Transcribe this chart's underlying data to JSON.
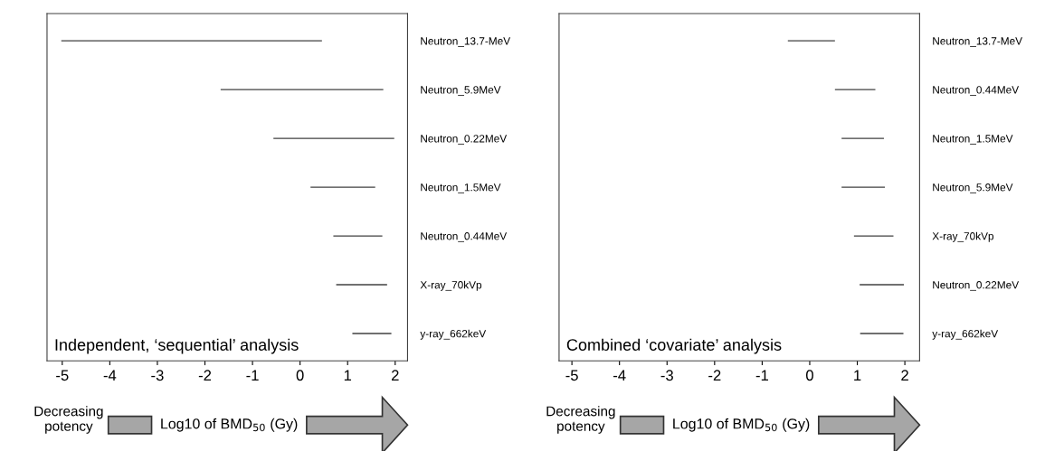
{
  "chart_data": [
    {
      "type": "bar",
      "orientation": "horizontal",
      "xlabel": "Log10 of BMD$_{50}$ (Gy)",
      "annotations": [
        "Independent, ‘sequential’ analysis",
        "Decreasing\npotency"
      ],
      "categories": [
        "Neutron_13.7-MeV",
        "Neutron_5.9MeV",
        "Neutron_0.22MeV",
        "Neutron_1.5MeV",
        "Neutron_0.44MeV",
        "X-ray_70kVp",
        "y-ray_662keV"
      ],
      "base": [
        -5.02,
        -1.67,
        -0.56,
        0.22,
        0.7,
        0.76,
        1.1
      ],
      "values": [
        5.48,
        3.42,
        2.54,
        1.36,
        1.03,
        1.07,
        0.82
      ],
      "color": "#404040",
      "xlim": [
        -5.32,
        2.26
      ],
      "xticks": [
        -5,
        -4,
        -3,
        -2,
        -1,
        0,
        1,
        2
      ]
    },
    {
      "type": "bar",
      "orientation": "horizontal",
      "xlabel": "Log10 of BMD$_{50}$ (Gy)",
      "annotations": [
        "Combined ‘covariate’ analysis",
        "Decreasing\npotency"
      ],
      "categories": [
        "Neutron_13.7-MeV",
        "Neutron_0.44MeV",
        "Neutron_1.5MeV",
        "Neutron_5.9MeV",
        "X-ray_70kVp",
        "Neutron_0.22MeV",
        "y-ray_662keV"
      ],
      "base": [
        -0.46,
        0.53,
        0.67,
        0.67,
        0.93,
        1.05,
        1.06
      ],
      "values": [
        0.99,
        0.85,
        0.89,
        0.91,
        0.83,
        0.93,
        0.91
      ],
      "color": "#404040",
      "xlim": [
        -5.27,
        2.31
      ],
      "xticks": [
        -5,
        -4,
        -3,
        -2,
        -1,
        0,
        1,
        2
      ]
    }
  ]
}
